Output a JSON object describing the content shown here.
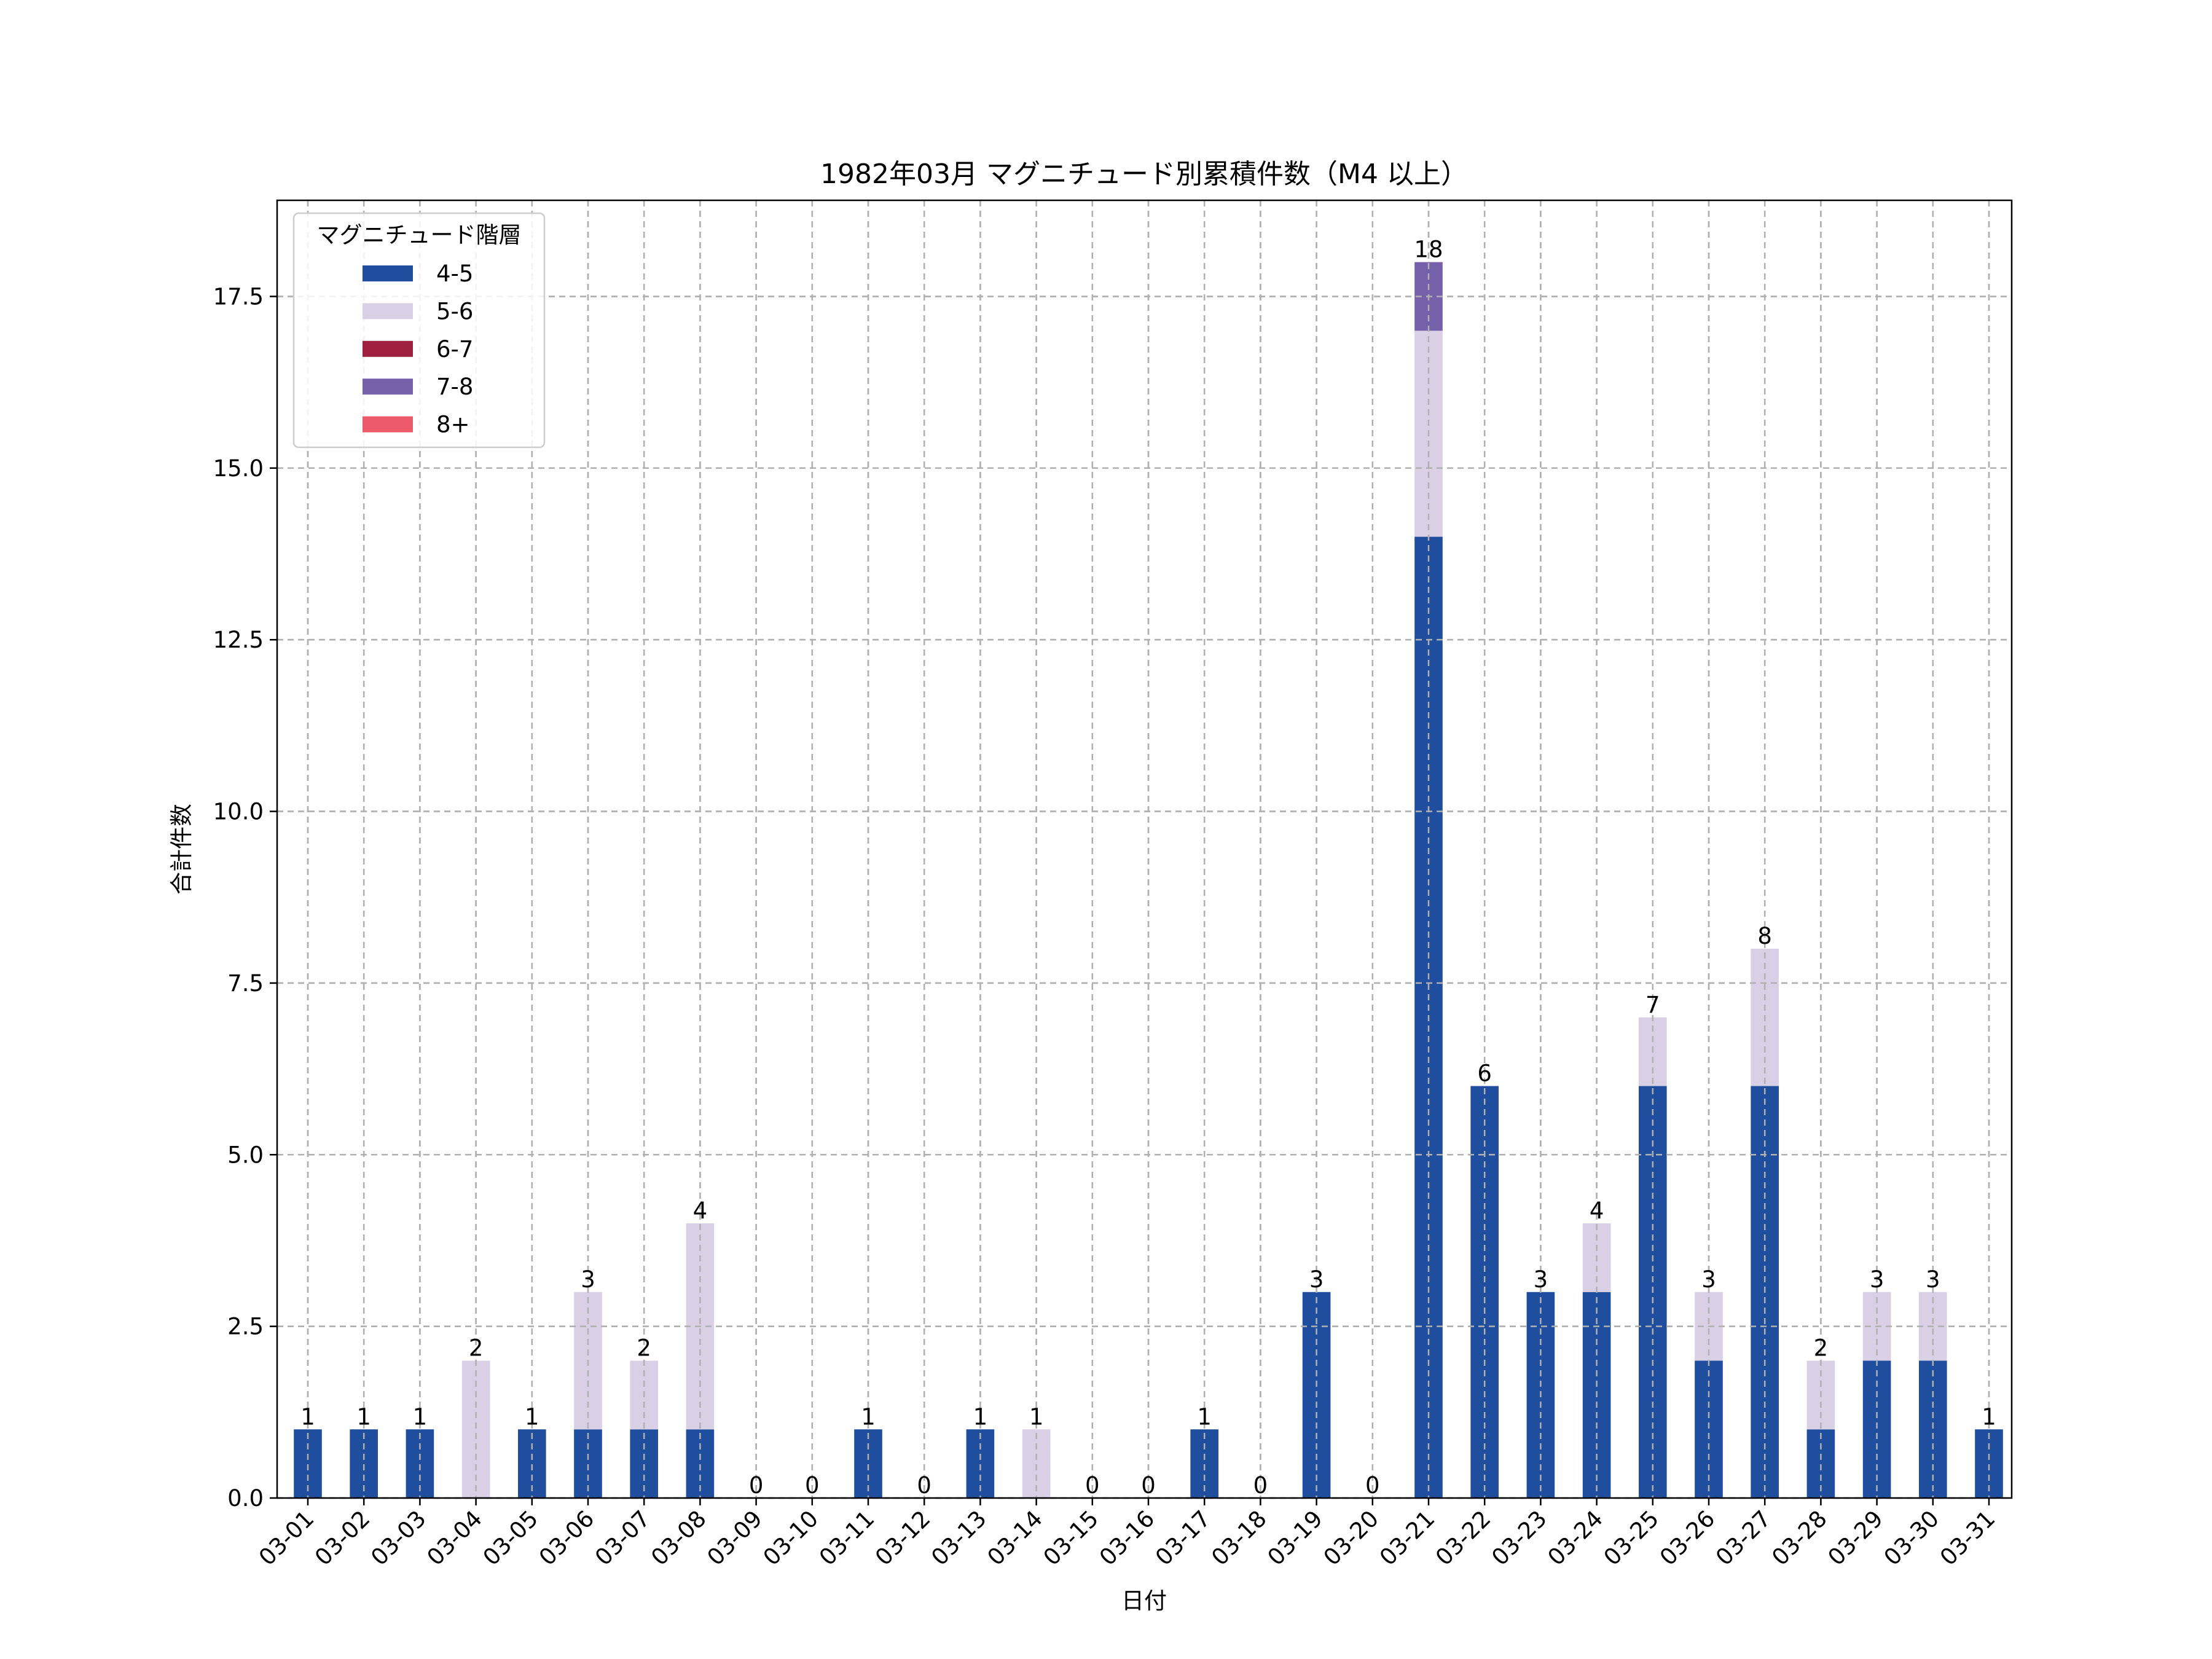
{
  "chart_data": {
    "type": "bar",
    "stacked": true,
    "title": "1982年03月 マグニチュード別累積件数（M4 以上）",
    "xlabel": "日付",
    "ylabel": "合計件数",
    "ylim": [
      0,
      18.9
    ],
    "yticks": [
      "0.0",
      "2.5",
      "5.0",
      "7.5",
      "10.0",
      "12.5",
      "15.0",
      "17.5"
    ],
    "ytick_values": [
      0,
      2.5,
      5,
      7.5,
      10,
      12.5,
      15,
      17.5
    ],
    "grid": true,
    "legend": {
      "title": "マグニチュード階層",
      "position": "top-left"
    },
    "categories": [
      "03-01",
      "03-02",
      "03-03",
      "03-04",
      "03-05",
      "03-06",
      "03-07",
      "03-08",
      "03-09",
      "03-10",
      "03-11",
      "03-12",
      "03-13",
      "03-14",
      "03-15",
      "03-16",
      "03-17",
      "03-18",
      "03-19",
      "03-20",
      "03-21",
      "03-22",
      "03-23",
      "03-24",
      "03-25",
      "03-26",
      "03-27",
      "03-28",
      "03-29",
      "03-30",
      "03-31"
    ],
    "series": [
      {
        "name": "4-5",
        "color": "#1f4e9e",
        "values": [
          1,
          1,
          1,
          0,
          1,
          1,
          1,
          1,
          0,
          0,
          1,
          0,
          1,
          0,
          0,
          0,
          1,
          0,
          3,
          0,
          14,
          6,
          3,
          3,
          6,
          2,
          6,
          1,
          2,
          2,
          1
        ]
      },
      {
        "name": "5-6",
        "color": "#dad0e6",
        "values": [
          0,
          0,
          0,
          2,
          0,
          2,
          1,
          3,
          0,
          0,
          0,
          0,
          0,
          1,
          0,
          0,
          0,
          0,
          0,
          0,
          3,
          0,
          0,
          1,
          1,
          1,
          2,
          1,
          1,
          1,
          0
        ]
      },
      {
        "name": "6-7",
        "color": "#a0203f",
        "values": [
          0,
          0,
          0,
          0,
          0,
          0,
          0,
          0,
          0,
          0,
          0,
          0,
          0,
          0,
          0,
          0,
          0,
          0,
          0,
          0,
          0,
          0,
          0,
          0,
          0,
          0,
          0,
          0,
          0,
          0,
          0
        ]
      },
      {
        "name": "7-8",
        "color": "#7660a9",
        "values": [
          0,
          0,
          0,
          0,
          0,
          0,
          0,
          0,
          0,
          0,
          0,
          0,
          0,
          0,
          0,
          0,
          0,
          0,
          0,
          0,
          1,
          0,
          0,
          0,
          0,
          0,
          0,
          0,
          0,
          0,
          0
        ]
      },
      {
        "name": "8+",
        "color": "#ec5a6a",
        "values": [
          0,
          0,
          0,
          0,
          0,
          0,
          0,
          0,
          0,
          0,
          0,
          0,
          0,
          0,
          0,
          0,
          0,
          0,
          0,
          0,
          0,
          0,
          0,
          0,
          0,
          0,
          0,
          0,
          0,
          0,
          0
        ]
      }
    ],
    "totals": [
      1,
      1,
      1,
      2,
      1,
      3,
      2,
      4,
      0,
      0,
      1,
      0,
      1,
      1,
      0,
      0,
      1,
      0,
      3,
      0,
      18,
      6,
      3,
      4,
      7,
      3,
      8,
      2,
      3,
      3,
      1
    ]
  }
}
